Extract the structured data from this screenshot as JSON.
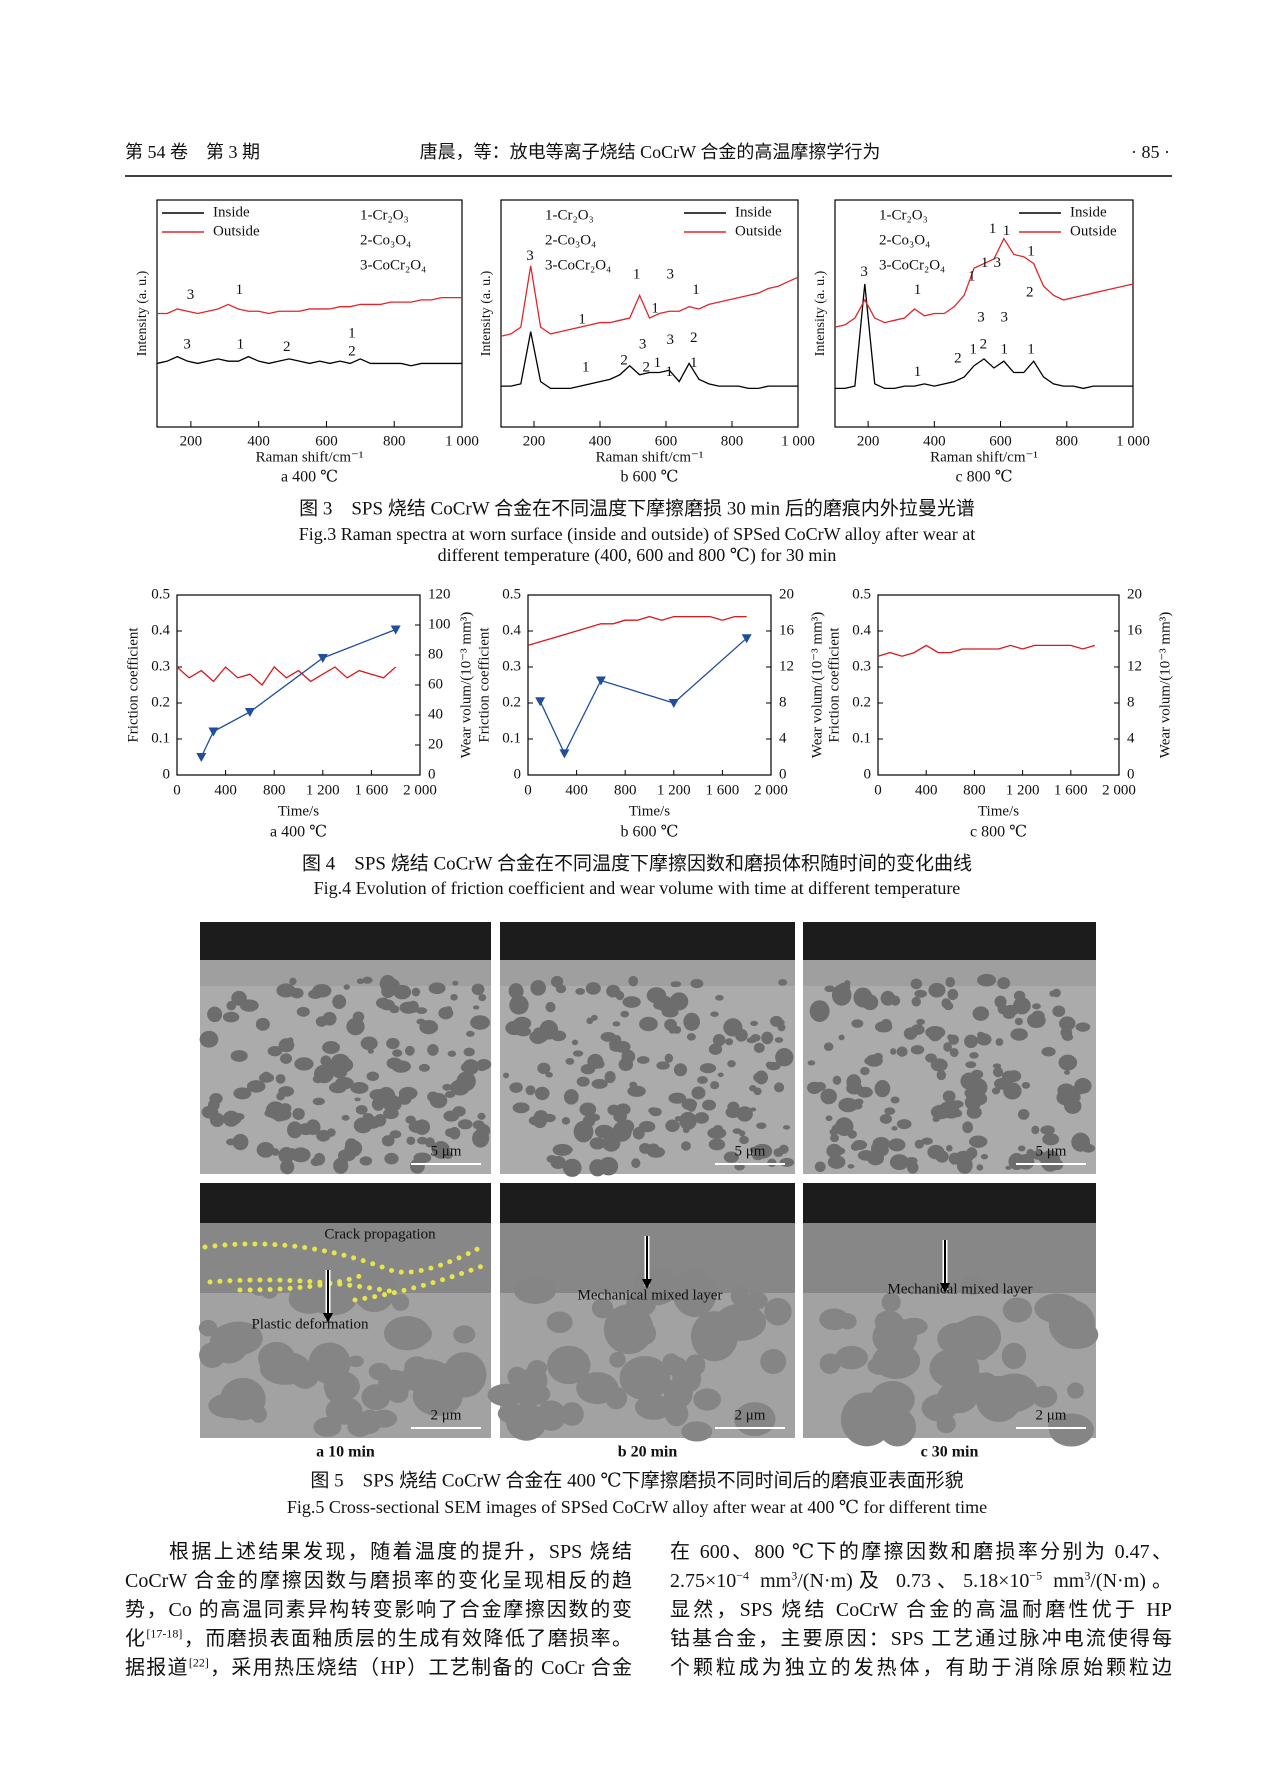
{
  "header": {
    "volume": "第 54 卷　第 3 期",
    "title": "唐晨，等：放电等离子烧结 CoCrW 合金的高温摩擦学行为",
    "page": "· 85 ·"
  },
  "figure3": {
    "caption_cn": "图 3　SPS 烧结 CoCrW 合金在不同温度下摩擦磨损 30 min 后的磨痕内外拉曼光谱",
    "caption_en": [
      "Fig.3 Raman spectra at worn surface (inside and outside) of SPSed CoCrW alloy after wear at",
      "different temperature (400, 600 and 800 ℃) for 30 min"
    ],
    "chart_data": [
      {
        "type": "line",
        "subtitle": "a  400 ℃",
        "xlabel": "Raman shift/cm⁻¹",
        "ylabel": "Intensity (a. u.)",
        "xlim": [
          100,
          1000
        ],
        "xticks": [
          200,
          400,
          600,
          800,
          {
            "value": 1000,
            "label": "1 000"
          }
        ],
        "ylim": [
          0,
          100
        ],
        "legend": "upper left",
        "species": [
          "1-Cr₂O₃",
          "2-Co₃O₄",
          "3-CoCr₂O₄"
        ],
        "species_corner": "upper right",
        "x": [
          100,
          130,
          160,
          190,
          220,
          250,
          280,
          310,
          340,
          370,
          400,
          430,
          460,
          490,
          520,
          550,
          580,
          610,
          640,
          670,
          700,
          730,
          760,
          790,
          820,
          850,
          880,
          910,
          940,
          970,
          1000
        ],
        "series": [
          {
            "name": "Inside",
            "color": "#000000",
            "values": [
              28,
              29,
              31,
              29,
              28,
              29,
              30,
              29,
              29,
              31,
              29,
              28,
              29,
              30,
              29,
              28,
              29,
              28,
              29,
              28,
              30,
              28,
              28,
              28,
              28,
              27,
              28,
              28,
              28,
              28,
              28
            ]
          },
          {
            "name": "Outside",
            "color": "#e0262b",
            "values": [
              50,
              50,
              52,
              51,
              50,
              51,
              52,
              54,
              52,
              51,
              51,
              50,
              51,
              51,
              51,
              52,
              52,
              52,
              53,
              53,
              54,
              54,
              54,
              55,
              55,
              55,
              56,
              56,
              57,
              57,
              57
            ]
          }
        ],
        "annotations": [
          {
            "text": "3",
            "x": 199,
            "y": 58
          },
          {
            "text": "1",
            "x": 343,
            "y": 60
          },
          {
            "text": "3",
            "x": 189,
            "y": 36
          },
          {
            "text": "1",
            "x": 346,
            "y": 36
          },
          {
            "text": "2",
            "x": 483,
            "y": 35
          },
          {
            "text": "1",
            "x": 675,
            "y": 41
          },
          {
            "text": "2",
            "x": 675,
            "y": 33
          }
        ]
      },
      {
        "type": "line",
        "subtitle": "b  600 ℃",
        "xlabel": "Raman shift/cm⁻¹",
        "ylabel": "Intensity (a. u.)",
        "xlim": [
          100,
          1000
        ],
        "xticks": [
          200,
          400,
          600,
          800,
          {
            "value": 1000,
            "label": "1 000"
          }
        ],
        "ylim": [
          0,
          100
        ],
        "legend": "upper right",
        "species": [
          "1-Cr₂O₃",
          "2-Co₃O₄",
          "3-CoCr₂O₄"
        ],
        "species_corner": "upper left",
        "x": [
          100,
          130,
          160,
          190,
          220,
          250,
          280,
          310,
          340,
          370,
          400,
          430,
          460,
          490,
          520,
          550,
          580,
          610,
          640,
          670,
          700,
          730,
          760,
          790,
          820,
          850,
          880,
          910,
          940,
          970,
          1000
        ],
        "series": [
          {
            "name": "Inside",
            "color": "#000000",
            "values": [
              18,
              18,
              19,
              42,
              20,
              17,
              17,
              17,
              18,
              19,
              20,
              21,
              23,
              27,
              23,
              24,
              24,
              25,
              20,
              28,
              21,
              19,
              18,
              18,
              18,
              17,
              17,
              18,
              18,
              18,
              18
            ]
          },
          {
            "name": "Outside",
            "color": "#e0262b",
            "values": [
              40,
              41,
              44,
              71,
              44,
              41,
              42,
              43,
              44,
              45,
              46,
              46,
              47,
              48,
              58,
              48,
              50,
              51,
              51,
              53,
              52,
              54,
              55,
              56,
              57,
              58,
              59,
              61,
              62,
              64,
              66
            ]
          }
        ],
        "annotations": [
          {
            "text": "3",
            "x": 188,
            "y": 75
          },
          {
            "text": "1",
            "x": 346,
            "y": 47
          },
          {
            "text": "1",
            "x": 511,
            "y": 67
          },
          {
            "text": "1",
            "x": 567,
            "y": 52
          },
          {
            "text": "3",
            "x": 613,
            "y": 67
          },
          {
            "text": "1",
            "x": 691,
            "y": 60
          },
          {
            "text": "3",
            "x": 529,
            "y": 36
          },
          {
            "text": "1",
            "x": 357,
            "y": 26
          },
          {
            "text": "2",
            "x": 473,
            "y": 29
          },
          {
            "text": "2",
            "x": 540,
            "y": 26
          },
          {
            "text": "1",
            "x": 574,
            "y": 28
          },
          {
            "text": "3",
            "x": 613,
            "y": 38
          },
          {
            "text": "1",
            "x": 610,
            "y": 24
          },
          {
            "text": "2",
            "x": 684,
            "y": 39
          },
          {
            "text": "1",
            "x": 684,
            "y": 28
          }
        ]
      },
      {
        "type": "line",
        "subtitle": "c  800 ℃",
        "xlabel": "Raman shift/cm⁻¹",
        "ylabel": "Intensity (a. u.)",
        "xlim": [
          100,
          1000
        ],
        "xticks": [
          200,
          400,
          600,
          800,
          {
            "value": 1000,
            "label": "1 000"
          }
        ],
        "ylim": [
          0,
          100
        ],
        "legend": "upper right",
        "species": [
          "1-Cr₂O₃",
          "2-Co₃O₄",
          "3-CoCr₂O₄"
        ],
        "species_corner": "upper left",
        "x": [
          100,
          130,
          160,
          190,
          220,
          250,
          280,
          310,
          340,
          370,
          400,
          430,
          460,
          490,
          520,
          550,
          580,
          610,
          640,
          670,
          700,
          730,
          760,
          790,
          820,
          850,
          880,
          910,
          940,
          970,
          1000
        ],
        "series": [
          {
            "name": "Inside",
            "color": "#000000",
            "values": [
              17,
              17,
              18,
              63,
              19,
              17,
              17,
              18,
              18,
              19,
              18,
              19,
              20,
              22,
              27,
              30,
              26,
              29,
              24,
              24,
              29,
              22,
              19,
              18,
              18,
              17,
              18,
              18,
              18,
              18,
              18
            ]
          },
          {
            "name": "Outside",
            "color": "#e0262b",
            "values": [
              44,
              45,
              48,
              56,
              48,
              46,
              47,
              48,
              52,
              49,
              50,
              50,
              53,
              58,
              70,
              72,
              74,
              83,
              76,
              75,
              72,
              62,
              58,
              56,
              57,
              58,
              59,
              60,
              61,
              62,
              63
            ]
          }
        ],
        "annotations": [
          {
            "text": "3",
            "x": 188,
            "y": 68
          },
          {
            "text": "1",
            "x": 349,
            "y": 60
          },
          {
            "text": "1",
            "x": 513,
            "y": 66
          },
          {
            "text": "1",
            "x": 552,
            "y": 72
          },
          {
            "text": "3",
            "x": 590,
            "y": 72
          },
          {
            "text": "1",
            "x": 576,
            "y": 87
          },
          {
            "text": "1",
            "x": 618,
            "y": 86
          },
          {
            "text": "1",
            "x": 692,
            "y": 77
          },
          {
            "text": "2",
            "x": 688,
            "y": 59
          },
          {
            "text": "3",
            "x": 541,
            "y": 48
          },
          {
            "text": "3",
            "x": 611,
            "y": 48
          },
          {
            "text": "1",
            "x": 349,
            "y": 24
          },
          {
            "text": "2",
            "x": 471,
            "y": 30
          },
          {
            "text": "1",
            "x": 517,
            "y": 34
          },
          {
            "text": "2",
            "x": 548,
            "y": 36
          },
          {
            "text": "1",
            "x": 611,
            "y": 34
          },
          {
            "text": "1",
            "x": 692,
            "y": 34
          }
        ]
      }
    ]
  },
  "figure4": {
    "caption_cn": "图 4　SPS 烧结 CoCrW 合金在不同温度下摩擦因数和磨损体积随时间的变化曲线",
    "caption_en": "Fig.4 Evolution of friction coefficient and wear volume with time at different temperature",
    "chart_data": [
      {
        "type": "line",
        "subtitle": "a  400 ℃",
        "xlabel": "Time/s",
        "ylabel": "Friction coefficient",
        "y2label": "Wear volum/(10⁻³ mm³)",
        "xlim": [
          0,
          2000
        ],
        "xticks": [
          0,
          400,
          800,
          {
            "value": 1200,
            "label": "1 200"
          },
          {
            "value": 1600,
            "label": "1 600"
          },
          {
            "value": 2000,
            "label": "2 000"
          }
        ],
        "ylim": [
          0,
          0.5
        ],
        "yticks": [
          0,
          0.1,
          0.2,
          0.3,
          0.4,
          0.5
        ],
        "y2lim": [
          0,
          120
        ],
        "y2ticks": [
          0,
          20,
          40,
          60,
          80,
          100,
          120
        ],
        "series": [
          {
            "color": "#d7191c",
            "x": [
              0,
              100,
              200,
              300,
              400,
              500,
              600,
              700,
              800,
              900,
              1000,
              1100,
              1200,
              1300,
              1400,
              1500,
              1600,
              1700,
              1800
            ],
            "values": [
              0.3,
              0.27,
              0.29,
              0.26,
              0.3,
              0.27,
              0.28,
              0.25,
              0.3,
              0.27,
              0.29,
              0.26,
              0.28,
              0.3,
              0.27,
              0.29,
              0.28,
              0.27,
              0.3
            ]
          },
          {
            "color": "#1f4e9c",
            "axis": "y2",
            "marker": "triangle-down",
            "x": [
              200,
              300,
              600,
              1200,
              1800
            ],
            "values": [
              12,
              29,
              42,
              78,
              97
            ]
          }
        ]
      },
      {
        "type": "line",
        "subtitle": "b  600 ℃",
        "xlabel": "Time/s",
        "ylabel": "Friction coefficient",
        "y2label": "Wear volum/(10⁻³ mm³)",
        "xlim": [
          0,
          2000
        ],
        "xticks": [
          0,
          400,
          800,
          {
            "value": 1200,
            "label": "1 200"
          },
          {
            "value": 1600,
            "label": "1 600"
          },
          {
            "value": 2000,
            "label": "2 000"
          }
        ],
        "ylim": [
          0,
          0.5
        ],
        "yticks": [
          0,
          0.1,
          0.2,
          0.3,
          0.4,
          0.5
        ],
        "y2lim": [
          0,
          20
        ],
        "y2ticks": [
          0,
          4,
          8,
          12,
          16,
          20
        ],
        "series": [
          {
            "color": "#d7191c",
            "x": [
              0,
              100,
              200,
              300,
              400,
              500,
              600,
              700,
              800,
              900,
              1000,
              1100,
              1200,
              1300,
              1400,
              1500,
              1600,
              1700,
              1800
            ],
            "values": [
              0.36,
              0.37,
              0.38,
              0.39,
              0.4,
              0.41,
              0.42,
              0.42,
              0.43,
              0.43,
              0.44,
              0.43,
              0.44,
              0.44,
              0.44,
              0.44,
              0.43,
              0.44,
              0.44
            ]
          },
          {
            "color": "#1f4e9c",
            "axis": "y2",
            "marker": "triangle-down",
            "x": [
              100,
              300,
              600,
              1200,
              1800
            ],
            "values": [
              8.2,
              2.4,
              10.5,
              8,
              15.2
            ]
          }
        ]
      },
      {
        "type": "line",
        "subtitle": "c  800 ℃",
        "xlabel": "Time/s",
        "ylabel": "Friction coefficient",
        "y2label": "Wear volum/(10⁻³ mm³)",
        "xlim": [
          0,
          2000
        ],
        "xticks": [
          0,
          400,
          800,
          {
            "value": 1200,
            "label": "1 200"
          },
          {
            "value": 1600,
            "label": "1 600"
          },
          {
            "value": 2000,
            "label": "2 000"
          }
        ],
        "ylim": [
          0,
          0.5
        ],
        "yticks": [
          0,
          0.1,
          0.2,
          0.3,
          0.4,
          0.5
        ],
        "y2lim": [
          0,
          20
        ],
        "y2ticks": [
          0,
          4,
          8,
          12,
          16,
          20
        ],
        "series": [
          {
            "color": "#d7191c",
            "x": [
              0,
              100,
              200,
              300,
              400,
              500,
              600,
              700,
              800,
              900,
              1000,
              1100,
              1200,
              1300,
              1400,
              1500,
              1600,
              1700,
              1800
            ],
            "values": [
              0.33,
              0.34,
              0.33,
              0.34,
              0.36,
              0.34,
              0.34,
              0.35,
              0.35,
              0.35,
              0.35,
              0.36,
              0.35,
              0.36,
              0.36,
              0.36,
              0.36,
              0.35,
              0.36
            ]
          }
        ]
      }
    ]
  },
  "figure5": {
    "caption_cn": "图 5　SPS 烧结 CoCrW 合金在 400 ℃下摩擦磨损不同时间后的磨痕亚表面形貌",
    "caption_en": "Fig.5 Cross-sectional SEM images of SPSed CoCrW alloy after wear at 400 ℃ for different time",
    "subtitles": [
      "a  10 min",
      "b  20 min",
      "c  30 min"
    ],
    "images": [
      [
        {
          "scale_bar": "5 μm"
        },
        {
          "scale_bar": "5 μm"
        },
        {
          "scale_bar": "5 μm"
        }
      ],
      [
        {
          "scale_bar": "2 μm",
          "labels": [
            "Crack propagation",
            "Plastic deformation"
          ]
        },
        {
          "scale_bar": "2 μm",
          "labels": [
            "Mechanical mixed layer"
          ]
        },
        {
          "scale_bar": "2 μm",
          "labels": [
            "Mechanical mixed layer"
          ]
        }
      ]
    ]
  },
  "body": {
    "left": [
      [
        "根据上述结果发现，随着温度的提升，SPS 烧结"
      ],
      [
        "CoCrW 合金的摩擦因数与磨损率的变化呈现相反的趋"
      ],
      [
        "势，Co 的高温同素异构转变影响了合金摩擦因数的变"
      ],
      [
        "化",
        {
          "sup": "[17-18]"
        },
        "，而磨损表面釉质层的生成有效降低了磨损率。"
      ],
      [
        "据报道",
        {
          "sup": "[22]"
        },
        "，采用热压烧结（HP）工艺制备的 CoCr 合金"
      ]
    ],
    "right": [
      [
        "在 600、800 ℃下的摩擦因数和磨损率分别为 0.47、"
      ],
      [
        "2.75×10",
        {
          "sup": "−4"
        },
        " mm",
        {
          "sup": "3"
        },
        "/(N·m)及 0.73、5.18×10",
        {
          "sup": "−5"
        },
        " mm",
        {
          "sup": "3"
        },
        "/(N·m)。"
      ],
      [
        "显然，SPS 烧结 CoCrW 合金的高温耐磨性优于 HP"
      ],
      [
        "钴基合金，主要原因：SPS 工艺通过脉冲电流使得每"
      ],
      [
        "个颗粒成为独立的发热体，有助于消除原始颗粒边"
      ]
    ]
  }
}
